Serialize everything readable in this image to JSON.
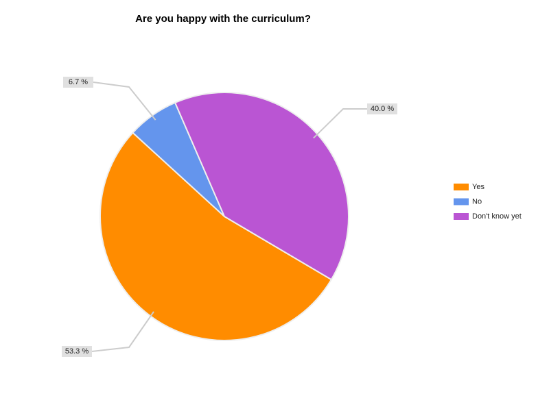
{
  "chart_data": {
    "type": "pie",
    "title": "Are you happy with the curriculum?",
    "categories": [
      "Yes",
      "No",
      "Don't know yet"
    ],
    "values": [
      53.3,
      6.7,
      40.0
    ],
    "value_labels": [
      "53.3 %",
      "6.7 %",
      "40.0 %"
    ],
    "colors": [
      "#ff8c00",
      "#6495ed",
      "#ba55d3"
    ],
    "legend": "right"
  }
}
